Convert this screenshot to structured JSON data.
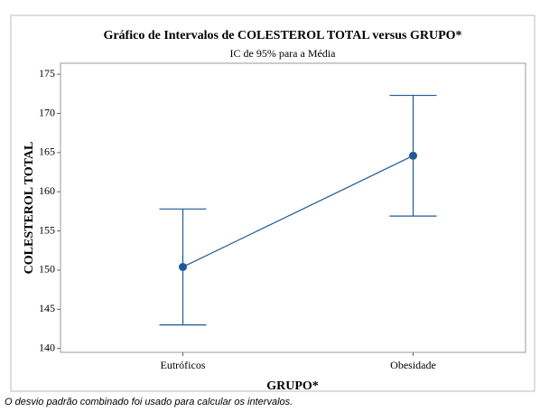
{
  "chart_data": {
    "type": "interval",
    "title": "Gráfico de Intervalos de COLESTEROL TOTAL versus GRUPO*",
    "subtitle": "IC de 95% para a Média",
    "x_label": "GRUPO*",
    "y_label": "COLESTEROL TOTAL",
    "footnote": "O desvio padrão combinado foi usado para calcular os intervalos.",
    "categories": [
      "Eutróficos",
      "Obesidade"
    ],
    "values": [
      150.4,
      164.6
    ],
    "errors": [
      7.4,
      7.7
    ],
    "color": "#1f5a96",
    "ylim": [
      139.5,
      176.4
    ],
    "yticks": [
      140,
      145,
      150,
      155,
      160,
      165,
      170,
      175
    ]
  }
}
